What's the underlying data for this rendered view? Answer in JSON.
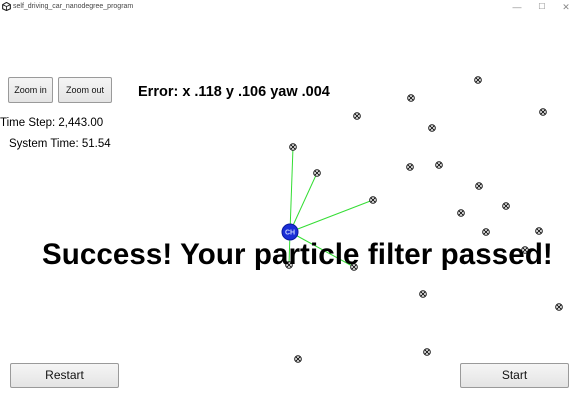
{
  "window": {
    "title": "self_driving_car_nanodegree_program",
    "app_icon": "unity-icon",
    "controls": [
      "minimize-icon",
      "maximize-icon",
      "close-icon"
    ]
  },
  "buttons": {
    "zoom_in": "Zoom in",
    "zoom_out": "Zoom out",
    "restart": "Restart",
    "start": "Start"
  },
  "status": {
    "error": "Error: x .118 y .106 yaw .004",
    "time_step": "Time Step: 2,443.00",
    "system_time": "System Time: 51.54",
    "message": "Success! Your particle filter passed!"
  },
  "colors": {
    "observation_line": "#33dd33",
    "vehicle_fill": "#1a2fd6",
    "landmark_stroke": "#111111"
  },
  "vehicle_label": "CH"
}
